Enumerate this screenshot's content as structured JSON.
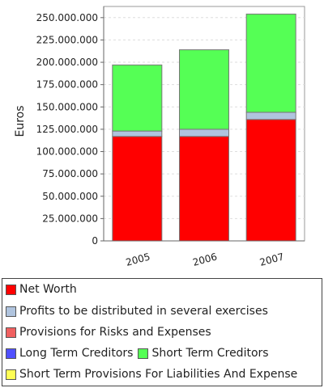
{
  "chart_data": {
    "type": "bar",
    "stacked": true,
    "ylabel": "Euros",
    "xlabel": "",
    "categories": [
      "2005",
      "2006",
      "2007"
    ],
    "ylim": [
      0,
      262500000
    ],
    "yticks": [
      "0",
      "25.000.000",
      "50.000.000",
      "75.000.000",
      "100.000.000",
      "125.000.000",
      "150.000.000",
      "175.000.000",
      "200.000.000",
      "225.000.000",
      "250.000.000"
    ],
    "ytick_values": [
      0,
      25000000,
      50000000,
      75000000,
      100000000,
      125000000,
      150000000,
      175000000,
      200000000,
      225000000,
      250000000
    ],
    "grid": true,
    "legend_placement": "bottom",
    "series": [
      {
        "name": "Net Worth",
        "color": "#ff0000",
        "values": [
          117000000,
          117000000,
          136000000
        ]
      },
      {
        "name": "Profits to be distributed in several exercises",
        "color": "#b0c4de",
        "values": [
          6000000,
          8000000,
          8000000
        ]
      },
      {
        "name": "Provisions for Risks and Expenses",
        "color": "#f06060",
        "values": [
          0,
          0,
          0
        ]
      },
      {
        "name": "Long Term Creditors",
        "color": "#5050ff",
        "values": [
          0,
          0,
          0
        ]
      },
      {
        "name": "Short Term Creditors",
        "color": "#55ff55",
        "values": [
          74000000,
          89000000,
          110000000
        ]
      },
      {
        "name": "Short Term Provisions For Liabilities And Expenses",
        "color": "#ffff55",
        "values": [
          0,
          0,
          0
        ]
      }
    ],
    "legend_text": [
      "Net Worth",
      "Profits to be distributed in several exercises",
      "Provisions for Risks and Expenses",
      "Long Term Creditors",
      "Short Term Creditors",
      "Short Term Provisions For Liabilities And Expense"
    ]
  }
}
